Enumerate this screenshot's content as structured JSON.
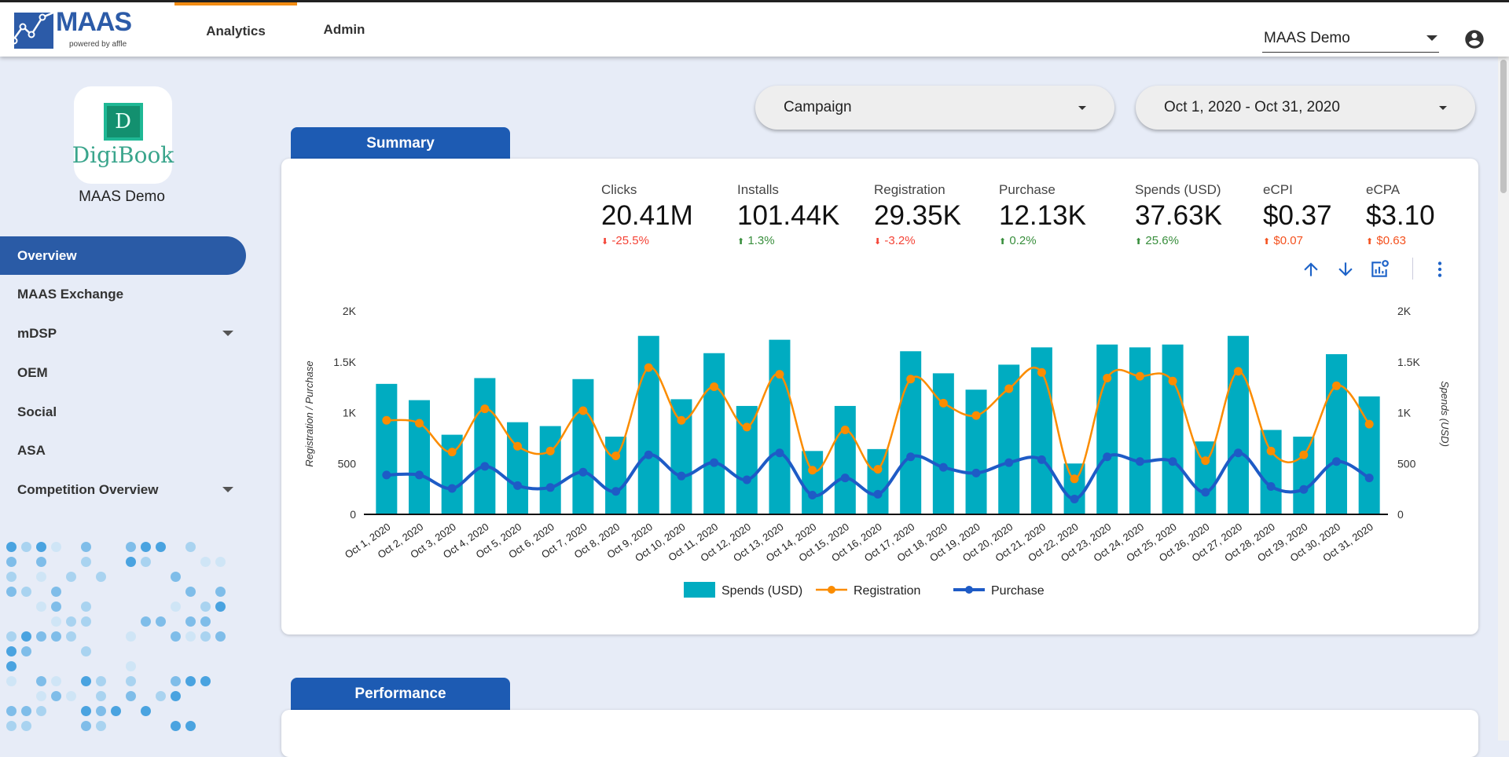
{
  "header": {
    "logo_text": "MAAS",
    "logo_sub": "powered by affle",
    "tabs": [
      {
        "label": "Analytics",
        "active": true
      },
      {
        "label": "Admin"
      }
    ],
    "account_select": "MAAS Demo",
    "account_icon": "account-circle-icon"
  },
  "sidebar": {
    "app_logo_letter": "D",
    "app_logo_name": "DigiBook",
    "client": "MAAS Demo",
    "items": [
      {
        "label": "Overview",
        "active": true
      },
      {
        "label": "MAAS Exchange"
      },
      {
        "label": "mDSP",
        "expandable": true
      },
      {
        "label": "OEM"
      },
      {
        "label": "Social"
      },
      {
        "label": "ASA"
      },
      {
        "label": "Competition Overview",
        "expandable": true
      }
    ]
  },
  "filters": {
    "campaign": "Campaign",
    "date_range": "Oct 1, 2020 - Oct 31, 2020"
  },
  "summary": {
    "tab": "Summary",
    "kpis": [
      {
        "label": "Clicks",
        "value": "20.41M",
        "delta": "-25.5%",
        "dir": "down",
        "color": "#f44336"
      },
      {
        "label": "Installs",
        "value": "101.44K",
        "delta": "1.3%",
        "dir": "up",
        "color": "#388e3c"
      },
      {
        "label": "Registration",
        "value": "29.35K",
        "delta": "-3.2%",
        "dir": "down",
        "color": "#f44336"
      },
      {
        "label": "Purchase",
        "value": "12.13K",
        "delta": "0.2%",
        "dir": "up",
        "color": "#388e3c"
      },
      {
        "label": "Spends (USD)",
        "value": "37.63K",
        "delta": "25.6%",
        "dir": "up",
        "color": "#388e3c"
      },
      {
        "label": "eCPI",
        "value": "$0.37",
        "delta": "$0.07",
        "dir": "up",
        "color": "#f4511e"
      },
      {
        "label": "eCPA",
        "value": "$3.10",
        "delta": "$0.63",
        "dir": "up",
        "color": "#f4511e"
      }
    ],
    "tools": [
      "arrow-up-icon",
      "arrow-down-icon",
      "chart-settings-icon",
      "more-vert-icon"
    ]
  },
  "performance": {
    "tab": "Performance"
  },
  "chart_data": {
    "type": "bar+line",
    "categories": [
      "Oct 1, 2020",
      "Oct 2, 2020",
      "Oct 3, 2020",
      "Oct 4, 2020",
      "Oct 5, 2020",
      "Oct 6, 2020",
      "Oct 7, 2020",
      "Oct 8, 2020",
      "Oct 9, 2020",
      "Oct 10, 2020",
      "Oct 11, 2020",
      "Oct 12, 2020",
      "Oct 13, 2020",
      "Oct 14, 2020",
      "Oct 15, 2020",
      "Oct 16, 2020",
      "Oct 17, 2020",
      "Oct 18, 2020",
      "Oct 19, 2020",
      "Oct 20, 2020",
      "Oct 21, 2020",
      "Oct 22, 2020",
      "Oct 23, 2020",
      "Oct 24, 2020",
      "Oct 25, 2020",
      "Oct 26, 2020",
      "Oct 27, 2020",
      "Oct 28, 2020",
      "Oct 29, 2020",
      "Oct 30, 2020",
      "Oct 31, 2020"
    ],
    "series": [
      {
        "name": "Spends (USD)",
        "kind": "bar",
        "axis": "right",
        "color": "#00acc1",
        "values": [
          1283,
          1123,
          783,
          1340,
          906,
          868,
          1330,
          764,
          1755,
          1132,
          1585,
          1066,
          1717,
          623,
          1066,
          642,
          1604,
          1387,
          1226,
          1472,
          1642,
          500,
          1670,
          1642,
          1670,
          717,
          1755,
          830,
          764,
          1575,
          1160
        ]
      },
      {
        "name": "Registration",
        "kind": "line",
        "axis": "left",
        "color": "#fb8c00",
        "values": [
          925,
          896,
          613,
          1038,
          670,
          623,
          1019,
          575,
          1443,
          925,
          1255,
          858,
          1377,
          434,
          830,
          443,
          1330,
          1094,
          972,
          1236,
          1396,
          349,
          1340,
          1358,
          1311,
          528,
          1406,
          623,
          585,
          1264,
          887
        ]
      },
      {
        "name": "Purchase",
        "kind": "line",
        "axis": "left",
        "color": "#1e5bc6",
        "values": [
          387,
          387,
          255,
          472,
          283,
          264,
          415,
          226,
          585,
          377,
          509,
          340,
          604,
          189,
          358,
          198,
          566,
          462,
          406,
          509,
          538,
          151,
          566,
          519,
          519,
          217,
          604,
          274,
          245,
          519,
          358
        ]
      }
    ],
    "ylabel_left": "Registration / Purchase",
    "ylabel_right": "Spends (USD)",
    "ylim": [
      0,
      2000
    ],
    "yticks": [
      "0",
      "500",
      "1K",
      "1.5K",
      "2K"
    ],
    "legend": "bottom",
    "grid": false
  }
}
